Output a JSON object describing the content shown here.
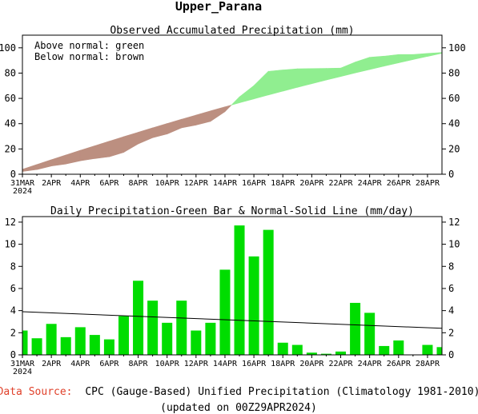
{
  "region_title": "Upper_Parana",
  "source_label": "Data Source:",
  "source_text": "CPC (Gauge-Based) Unified Precipitation (Climatology 1981-2010)",
  "updated_text": "(updated on 00Z29APR2024)",
  "colors": {
    "above": "#90ee90",
    "below": "#bc8f80",
    "bar": "#00dd00",
    "source_label": "#e0402a",
    "line": "#000000"
  },
  "chart_data": [
    {
      "type": "area",
      "title": "Observed Accumulated Precipitation (mm)",
      "legend": [
        "Above normal: green",
        "Below normal: brown"
      ],
      "legend_position": "top-left",
      "x_tick_labels": [
        "31MAR",
        "2APR",
        "4APR",
        "6APR",
        "8APR",
        "10APR",
        "12APR",
        "14APR",
        "16APR",
        "18APR",
        "20APR",
        "22APR",
        "24APR",
        "26APR",
        "28APR"
      ],
      "x_year_label": "2024",
      "ylim": [
        0,
        110
      ],
      "yticks": [
        0,
        20,
        40,
        60,
        80,
        100
      ],
      "x_days": [
        0,
        1,
        2,
        3,
        4,
        5,
        6,
        7,
        8,
        9,
        10,
        11,
        12,
        13,
        14,
        15,
        16,
        17,
        18,
        19,
        20,
        21,
        22,
        23,
        24,
        25,
        26,
        27,
        28,
        29
      ],
      "observed": [
        2.2,
        3.7,
        6.5,
        8.1,
        10.6,
        12.4,
        13.8,
        17.3,
        24,
        28.9,
        31.8,
        36.7,
        38.9,
        41.8,
        49.5,
        61.2,
        70.1,
        81.4,
        82.5,
        83.4,
        83.6,
        83.7,
        84,
        88.7,
        92.5,
        93.4,
        94.7,
        94.7,
        95.6,
        96.3
      ],
      "normal": [
        3.9,
        7.7,
        11.5,
        15.2,
        18.9,
        22.5,
        26.1,
        29.7,
        33.2,
        36.7,
        40.1,
        43.5,
        46.8,
        50.1,
        53.3,
        56.5,
        59.6,
        62.7,
        65.7,
        68.7,
        71.6,
        74.5,
        77.3,
        80.1,
        82.8,
        85.5,
        88.1,
        90.7,
        93.2,
        95.7
      ]
    },
    {
      "type": "bar",
      "title": "Daily Precipitation-Green Bar & Normal-Solid Line (mm/day)",
      "x_tick_labels": [
        "31MAR",
        "2APR",
        "4APR",
        "6APR",
        "8APR",
        "10APR",
        "12APR",
        "14APR",
        "16APR",
        "18APR",
        "20APR",
        "22APR",
        "24APR",
        "26APR",
        "28APR"
      ],
      "x_year_label": "2024",
      "ylim": [
        0,
        12.5
      ],
      "yticks": [
        0,
        2,
        4,
        6,
        8,
        10,
        12
      ],
      "x_days": [
        0,
        1,
        2,
        3,
        4,
        5,
        6,
        7,
        8,
        9,
        10,
        11,
        12,
        13,
        14,
        15,
        16,
        17,
        18,
        19,
        20,
        21,
        22,
        23,
        24,
        25,
        26,
        27,
        28,
        29
      ],
      "values": [
        2.2,
        1.5,
        2.8,
        1.6,
        2.5,
        1.8,
        1.4,
        3.5,
        6.7,
        4.9,
        2.9,
        4.9,
        2.2,
        2.9,
        7.7,
        11.7,
        8.9,
        11.3,
        1.1,
        0.9,
        0.2,
        0.1,
        0.3,
        4.7,
        3.8,
        0.8,
        1.3,
        0.0,
        0.9,
        0.7
      ],
      "normal_start": 3.9,
      "normal_end": 2.4
    }
  ]
}
